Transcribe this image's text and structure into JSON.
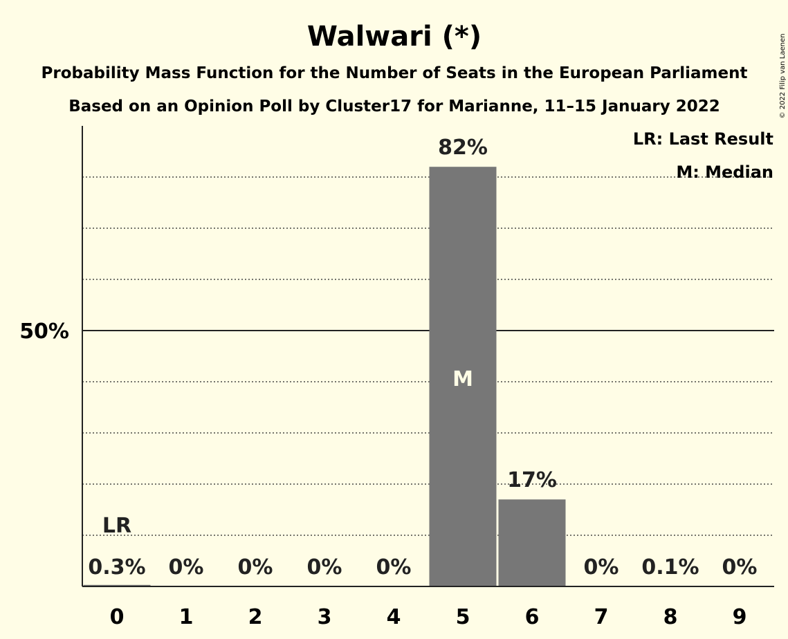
{
  "chart_data": {
    "type": "bar",
    "title": "Walwari (*)",
    "subtitle": "Probability Mass Function for the Number of Seats in the European Parliament",
    "subtitle2": "Based on an Opinion Poll by Cluster17 for Marianne, 11–15 January 2022",
    "categories": [
      "0",
      "1",
      "2",
      "3",
      "4",
      "5",
      "6",
      "7",
      "8",
      "9"
    ],
    "values": [
      0.3,
      0,
      0,
      0,
      0,
      82,
      17,
      0,
      0.1,
      0
    ],
    "data_labels": [
      "0.3%",
      "0%",
      "0%",
      "0%",
      "0%",
      "82%",
      "17%",
      "0%",
      "0.1%",
      "0%"
    ],
    "ylim": [
      0,
      90
    ],
    "y_ticks": [
      {
        "value": 50,
        "label": "50%"
      }
    ],
    "minor_gridlines": [
      10,
      20,
      30,
      40,
      60,
      70,
      80
    ],
    "last_result": {
      "index": 0,
      "label": "LR"
    },
    "median": {
      "index": 5,
      "label": "M"
    },
    "legend": [
      "LR: Last Result",
      "M: Median"
    ],
    "legend_position": "top-right",
    "copyright": "© 2022 Filip van Laenen",
    "colors": {
      "background": "#fffde6",
      "bar": "#777777",
      "text": "#222222",
      "median_text": "#fffde6"
    }
  }
}
